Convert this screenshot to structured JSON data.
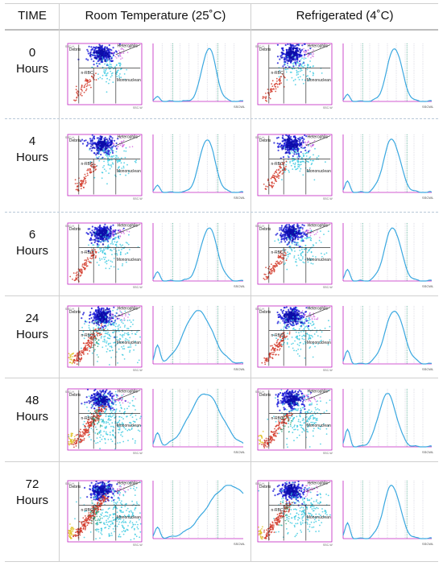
{
  "header": {
    "time": "TIME",
    "room": "Room Temperature (25˚C)",
    "fridge": "Refrigerated (4˚C)"
  },
  "labels": {
    "debris": "Debris",
    "heterophils": "Heterophils",
    "nrbc": "n-RBC",
    "mononuclear": "Mononuclean",
    "sscw": "SSC-W",
    "ssch": "SSC-H",
    "ssch_short": "SSC-H",
    "sscwl": "SSCWL",
    "ssc": "SSC"
  },
  "rows": [
    {
      "num": "0",
      "unit": "Hours",
      "room": {
        "spread": 0.0,
        "peak": 0.62,
        "width": 0.11,
        "tail": 0.02
      },
      "fridge": {
        "spread": 0.0,
        "peak": 0.58,
        "width": 0.12,
        "tail": 0.03
      }
    },
    {
      "num": "4",
      "unit": "Hours",
      "room": {
        "spread": 0.1,
        "peak": 0.6,
        "width": 0.12,
        "tail": 0.03
      },
      "fridge": {
        "spread": 0.1,
        "peak": 0.55,
        "width": 0.13,
        "tail": 0.05
      }
    },
    {
      "num": "6",
      "unit": "Hours",
      "room": {
        "spread": 0.2,
        "peak": 0.62,
        "width": 0.13,
        "tail": 0.04
      },
      "fridge": {
        "spread": 0.15,
        "peak": 0.56,
        "width": 0.13,
        "tail": 0.05
      }
    },
    {
      "num": "24",
      "unit": "Hours",
      "room": {
        "spread": 0.55,
        "peak": 0.5,
        "width": 0.22,
        "tail": 0.08
      },
      "fridge": {
        "spread": 0.3,
        "peak": 0.58,
        "width": 0.15,
        "tail": 0.06
      }
    },
    {
      "num": "48",
      "unit": "Hours",
      "room": {
        "spread": 0.8,
        "peak": 0.58,
        "width": 0.25,
        "tail": 0.06
      },
      "fridge": {
        "spread": 0.45,
        "peak": 0.5,
        "width": 0.14,
        "tail": 0.08
      }
    },
    {
      "num": "72",
      "unit": "Hours",
      "room": {
        "spread": 1.0,
        "peak": 0.85,
        "width": 0.35,
        "tail": 0.05
      },
      "fridge": {
        "spread": 0.55,
        "peak": 0.55,
        "width": 0.13,
        "tail": 0.07
      }
    }
  ],
  "colors": {
    "debris": "#d23a2a",
    "heterophil": "#1a1ad8",
    "mononuclear": "#35c8e0",
    "eosin": "#d060e0",
    "yellow": "#e0c020",
    "curve": "#3aa8e0",
    "frame": "#c020c0",
    "gate": "#333333"
  }
}
